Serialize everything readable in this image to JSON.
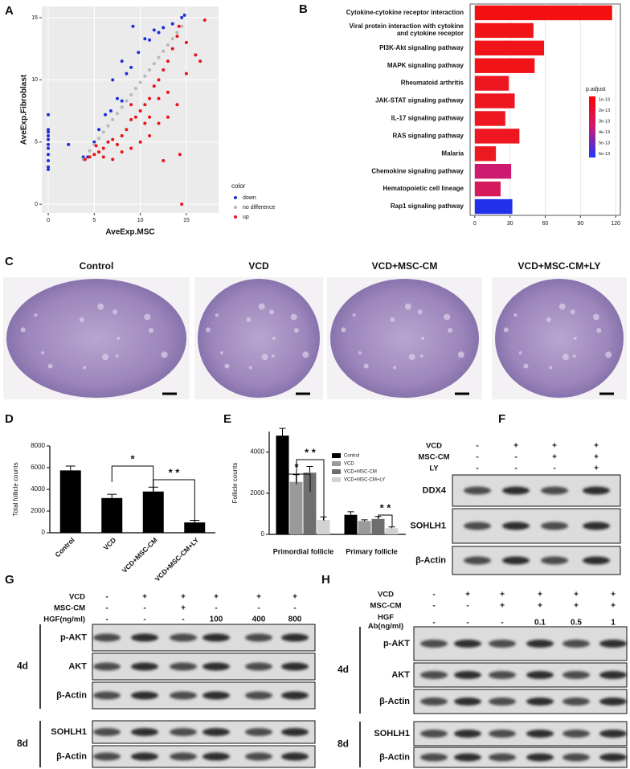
{
  "panel_labels": [
    "A",
    "B",
    "C",
    "D",
    "E",
    "F",
    "G",
    "H"
  ],
  "chart_data": [
    {
      "type": "scatter",
      "x_label": "AveExp.MSC",
      "y_label": "AveExp.Fibroblast",
      "legend_title": "color",
      "xlim": [
        -0.7,
        18.5
      ],
      "ylim": [
        -0.7,
        15.9
      ],
      "xticks": [
        0,
        5,
        10,
        15
      ],
      "yticks": [
        0,
        5,
        10,
        15
      ],
      "grid": true,
      "series": [
        {
          "name": "down",
          "color": "#1f2fd6",
          "x": [
            0,
            0,
            0,
            0,
            0,
            0,
            0,
            0,
            0,
            0,
            0,
            2.2,
            3.8,
            4.3,
            5,
            5.5,
            6.2,
            6.8,
            7.5,
            8,
            8.5,
            9,
            9.8,
            10.5,
            11,
            11.5,
            12,
            12.5,
            13.5,
            14.5,
            14.8,
            9.2,
            7,
            8
          ],
          "values": [
            7.2,
            6,
            5.8,
            5.5,
            5.2,
            4.8,
            4.5,
            4,
            3.5,
            3,
            2.8,
            4.8,
            3.8,
            3.8,
            5,
            6,
            7.2,
            7.5,
            8.5,
            8.3,
            10.5,
            11,
            12.2,
            13.3,
            13.2,
            14,
            13.8,
            14.2,
            14.5,
            15,
            15.2,
            14.3,
            10,
            11.5
          ]
        },
        {
          "name": "no difference",
          "color": "#b8b8b8",
          "x": [
            3.8,
            4.5,
            5,
            5.5,
            6,
            6.5,
            7,
            7.5,
            8,
            8.5,
            9,
            9.5,
            10,
            10.5,
            11,
            11.5,
            12,
            12.5,
            13,
            13.5,
            14,
            14.5
          ],
          "values": [
            3.6,
            4.3,
            4.8,
            5.3,
            5.8,
            6.3,
            6.8,
            7.3,
            7.8,
            8.3,
            8.8,
            9.3,
            9.8,
            10.3,
            10.8,
            11.3,
            11.8,
            12.3,
            12.8,
            13.3,
            13.8,
            14.3
          ]
        },
        {
          "name": "up",
          "color": "#e8141b",
          "x": [
            4,
            4.5,
            5,
            5.5,
            6,
            5.2,
            6.5,
            7,
            6,
            7.5,
            8,
            8.5,
            9,
            9.5,
            10,
            10.5,
            11,
            11.5,
            12,
            12.5,
            13,
            13.5,
            14,
            14.2,
            8,
            9,
            10,
            11,
            12,
            13,
            14,
            15,
            16,
            16.5,
            17,
            14.5,
            14.3,
            12.5,
            10.5,
            7,
            9,
            11,
            12,
            13,
            15
          ],
          "values": [
            3.6,
            3.8,
            4,
            4.2,
            4.5,
            4.7,
            5,
            5.2,
            3.8,
            4.8,
            5.5,
            6,
            6.8,
            7,
            7.5,
            8,
            8.5,
            9.5,
            10,
            10.8,
            11.5,
            12.5,
            13.5,
            14.3,
            4.2,
            4.5,
            5,
            5.5,
            6.5,
            7,
            8,
            10.5,
            12,
            11.5,
            14.8,
            0,
            4,
            3.5,
            6.5,
            3.6,
            8,
            7,
            8.5,
            9,
            13
          ]
        }
      ]
    },
    {
      "type": "barh",
      "categories": [
        "Cytokine-cytokine receptor interaction",
        "Viral protein interaction with cytokine\nand cytokine receptor",
        "PI3K-Akt signaling pathway",
        "MAPK signaling pathway",
        "Rheumatoid arthritis",
        "JAK-STAT signaling pathway",
        "IL-17 signaling pathway",
        "RAS signaling pathway",
        "Malaria",
        "Chemokine signaling pathway",
        "Hematopoietic cell lineage",
        "Rap1 signaling pathway"
      ],
      "values": [
        117,
        50,
        59,
        51,
        29,
        34,
        26,
        38,
        18,
        31,
        22,
        32
      ],
      "colors": [
        "#f41010",
        "#f01418",
        "#f01418",
        "#f01418",
        "#ee1620",
        "#ee1620",
        "#ee1620",
        "#ee1620",
        "#ec1822",
        "#cc1b70",
        "#d51a5c",
        "#2230ea"
      ],
      "xlim": [
        -4,
        124
      ],
      "xticks": [
        0,
        30,
        60,
        90,
        120
      ],
      "grid": true,
      "legend_title": "p.adjust",
      "legend_ticks": [
        "1e-13",
        "2e-13",
        "3e-13",
        "4e-13",
        "5e-13",
        "6e-13"
      ],
      "colorbar_colors": [
        "#ff0000",
        "#cc1a70",
        "#1f35ff"
      ]
    },
    {
      "type": "bar",
      "y_label": "Total follicle counts",
      "categories": [
        "Control",
        "VCD",
        "VCD+MSC-CM",
        "VCD+MSC-CM+LY"
      ],
      "values": [
        5750,
        3200,
        3800,
        950
      ],
      "errors": [
        400,
        350,
        400,
        200
      ],
      "color": "#000000",
      "ylim": [
        0,
        8000
      ],
      "yticks": [
        0,
        2000,
        4000,
        6000,
        8000
      ],
      "annotations": [
        "*",
        "* *"
      ]
    },
    {
      "type": "bar",
      "y_label": "Follicle counts",
      "categories": [
        "Primordial follicle",
        "Primary follicle"
      ],
      "series": [
        {
          "name": "Control",
          "color": "#000000",
          "values": [
            4800,
            950
          ],
          "errors": [
            350,
            150
          ]
        },
        {
          "name": "VCD",
          "color": "#9a9a9a",
          "values": [
            2550,
            650
          ],
          "errors": [
            350,
            60
          ]
        },
        {
          "name": "VCD+MSC-CM",
          "color": "#6e6e6e",
          "values": [
            3000,
            750
          ],
          "errors": [
            300,
            120
          ]
        },
        {
          "name": "VCD+MSC-CM+LY",
          "color": "#d2d2d2",
          "values": [
            700,
            300
          ],
          "errors": [
            150,
            60
          ]
        }
      ],
      "ylim": [
        0,
        5000
      ],
      "yticks": [
        0,
        2000,
        4000
      ],
      "annotations": [
        "*",
        "* *",
        "* *"
      ]
    }
  ],
  "histology": {
    "titles": [
      "Control",
      "VCD",
      "VCD+MSC-CM",
      "VCD+MSC-CM+LY"
    ]
  },
  "blots": [
    {
      "conditions": [
        {
          "label": "VCD",
          "values": [
            "-",
            "+",
            "+",
            "+"
          ]
        },
        {
          "label": "MSC-CM",
          "values": [
            "-",
            "-",
            "+",
            "+"
          ]
        },
        {
          "label": "LY",
          "values": [
            "-",
            "-",
            "-",
            "+"
          ]
        }
      ],
      "timepoints": [
        {
          "label": null,
          "bands": [
            "DDX4",
            "SOHLH1",
            "β-Actin"
          ]
        }
      ]
    },
    {
      "conditions": [
        {
          "label": "VCD",
          "values": [
            "-",
            "+",
            "+",
            "+",
            "+",
            "+"
          ]
        },
        {
          "label": "MSC-CM",
          "values": [
            "-",
            "-",
            "+",
            "-",
            "-",
            "-"
          ]
        },
        {
          "label": "HGF(ng/ml)",
          "values": [
            "-",
            "-",
            "-",
            "100",
            "400",
            "800"
          ]
        }
      ],
      "timepoints": [
        {
          "label": "4d",
          "bands": [
            "p-AKT",
            "AKT",
            "β-Actin"
          ]
        },
        {
          "label": "8d",
          "bands": [
            "SOHLH1",
            "β-Actin"
          ]
        }
      ]
    },
    {
      "conditions": [
        {
          "label": "VCD",
          "values": [
            "-",
            "+",
            "+",
            "+",
            "+",
            "+"
          ]
        },
        {
          "label": "MSC-CM",
          "values": [
            "-",
            "-",
            "+",
            "+",
            "+",
            "+"
          ]
        },
        {
          "label": "HGF\nAb(ng/ml)",
          "values": [
            "-",
            "-",
            "-",
            "0.1",
            "0.5",
            "1"
          ]
        }
      ],
      "timepoints": [
        {
          "label": "4d",
          "bands": [
            "p-AKT",
            "AKT",
            "β-Actin"
          ]
        },
        {
          "label": "8d",
          "bands": [
            "SOHLH1",
            "β-Actin"
          ]
        }
      ]
    }
  ]
}
